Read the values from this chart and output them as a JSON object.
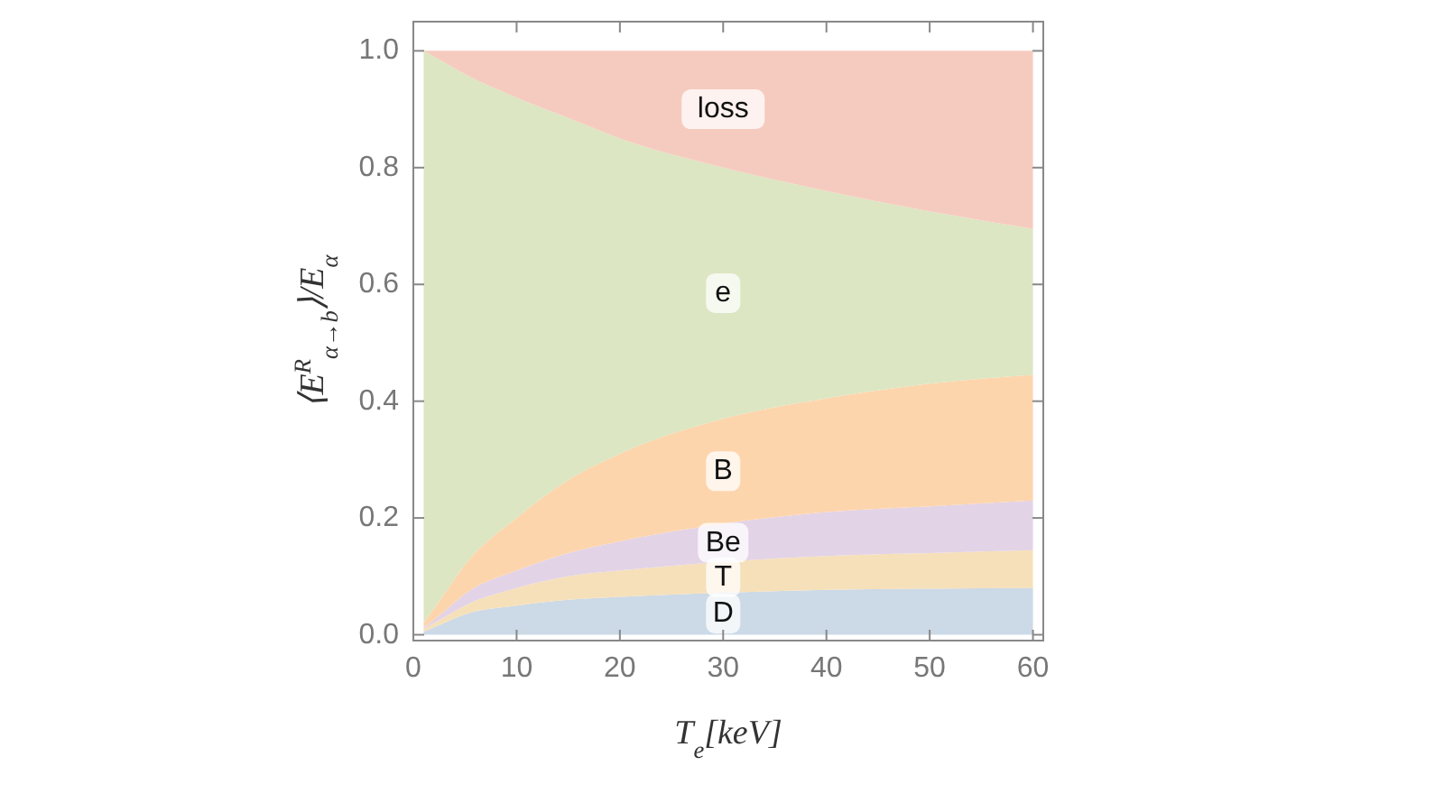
{
  "chart_data": {
    "type": "area",
    "stacked": true,
    "xlabel": "T$_{e}$[keV]",
    "ylabel": "⟨E$^{R}$$_{α→b}$⟩/E$_{α}$",
    "x": [
      1,
      3,
      5,
      10,
      15,
      20,
      30,
      40,
      50,
      60
    ],
    "xlim": [
      0,
      61
    ],
    "xticks": [
      0,
      10,
      20,
      30,
      40,
      50,
      60
    ],
    "ylim": [
      -0.01,
      1.05
    ],
    "yticks": [
      {
        "value": 0,
        "label": "0.0"
      },
      0.2,
      0.4,
      0.6,
      0.8,
      {
        "value": 1,
        "label": "1.0"
      }
    ],
    "grid": false,
    "series": [
      {
        "name": "D",
        "color": "#ccd9e6",
        "values": [
          0.005,
          0.02,
          0.035,
          0.05,
          0.06,
          0.065,
          0.072,
          0.077,
          0.079,
          0.08
        ]
      },
      {
        "name": "T",
        "color": "#f6e0ba",
        "values": [
          0.005,
          0.01,
          0.015,
          0.03,
          0.04,
          0.045,
          0.053,
          0.058,
          0.061,
          0.065
        ]
      },
      {
        "name": "Be",
        "color": "#e3d3e6",
        "values": [
          0.002,
          0.01,
          0.02,
          0.03,
          0.04,
          0.05,
          0.065,
          0.075,
          0.08,
          0.085
        ]
      },
      {
        "name": "B",
        "color": "#fdd5ad",
        "values": [
          0.008,
          0.03,
          0.05,
          0.09,
          0.125,
          0.15,
          0.18,
          0.195,
          0.21,
          0.215
        ]
      },
      {
        "name": "e",
        "color": "#dce6c2",
        "values": [
          0.98,
          0.91,
          0.84,
          0.72,
          0.62,
          0.54,
          0.43,
          0.355,
          0.295,
          0.25
        ]
      },
      {
        "name": "loss",
        "color": "#f6cbbf",
        "values": [
          0,
          0.02,
          0.04,
          0.08,
          0.115,
          0.15,
          0.2,
          0.24,
          0.275,
          0.305
        ]
      }
    ]
  }
}
